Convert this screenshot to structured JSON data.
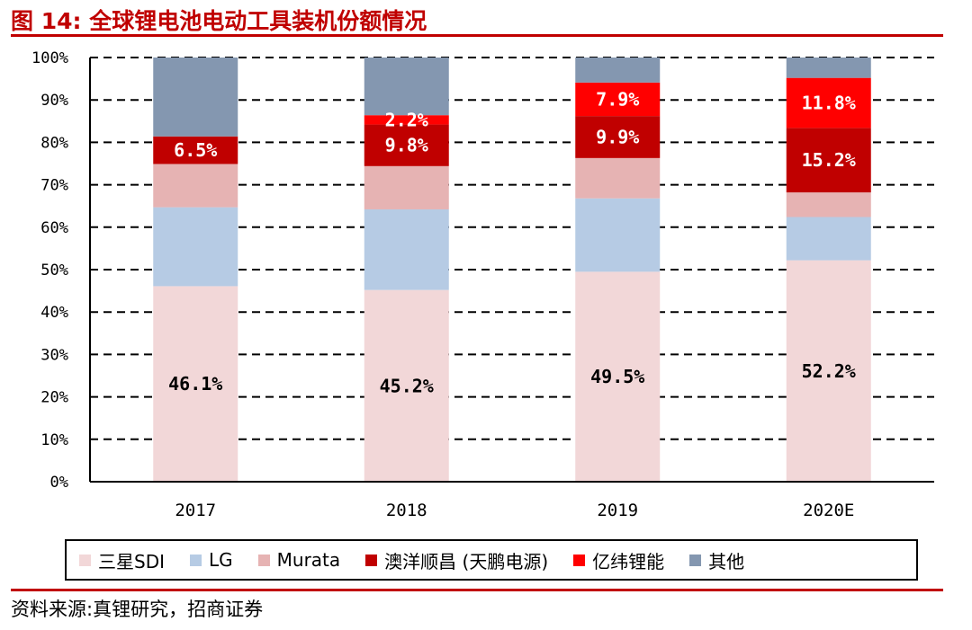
{
  "title": "图 14:  全球锂电池电动工具装机份额情况",
  "source": "资料来源:真锂研究，招商证券",
  "colors": {
    "accent": "#c00000",
    "title": "#c00000",
    "三星SDI": "#f2d7d8",
    "LG": "#b6cbe4",
    "Murata": "#e6b3b3",
    "澳洋顺昌 (天鹏电源)": "#c00000",
    "亿纬锂能": "#ff0000",
    "其他": "#8497b0"
  },
  "chart_data": {
    "type": "bar",
    "stacked": true,
    "categories": [
      "2017",
      "2018",
      "2019",
      "2020E"
    ],
    "ylim": [
      0,
      100
    ],
    "yticks": [
      "0%",
      "10%",
      "20%",
      "30%",
      "40%",
      "50%",
      "60%",
      "70%",
      "80%",
      "90%",
      "100%"
    ],
    "grid": true,
    "legend_position": "bottom",
    "series": [
      {
        "name": "三星SDI",
        "values": [
          46.1,
          45.2,
          49.5,
          52.2
        ],
        "labels": [
          "46.1%",
          "45.2%",
          "49.5%",
          "52.2%"
        ]
      },
      {
        "name": "LG",
        "values": [
          18.6,
          19.0,
          17.3,
          10.2
        ],
        "labels": [
          "",
          "",
          "",
          ""
        ]
      },
      {
        "name": "Murata",
        "values": [
          10.2,
          10.2,
          9.5,
          5.8
        ],
        "labels": [
          "",
          "",
          "",
          ""
        ]
      },
      {
        "name": "澳洋顺昌 (天鹏电源)",
        "values": [
          6.5,
          9.8,
          9.9,
          15.2
        ],
        "labels": [
          "6.5%",
          "9.8%",
          "9.9%",
          "15.2%"
        ]
      },
      {
        "name": "亿纬锂能",
        "values": [
          0,
          2.2,
          7.9,
          11.8
        ],
        "labels": [
          "",
          "2.2%",
          "7.9%",
          "11.8%"
        ]
      },
      {
        "name": "其他",
        "values": [
          18.6,
          13.6,
          5.9,
          4.8
        ],
        "labels": [
          "",
          "",
          "",
          ""
        ]
      }
    ]
  }
}
